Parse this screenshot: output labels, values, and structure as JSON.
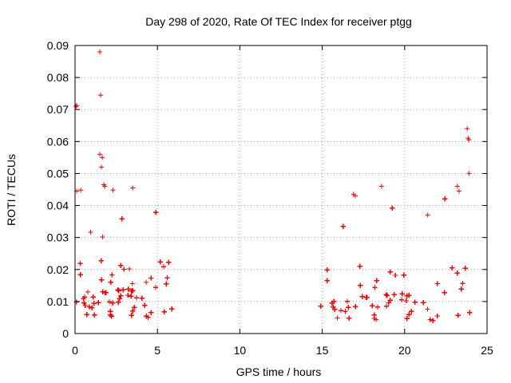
{
  "chart_data": {
    "type": "scatter",
    "title": "Day 298 of 2020, Rate Of TEC Index for receiver ptgg",
    "xlabel": "GPS time / hours",
    "ylabel": "ROTI / TECUs",
    "xlim": [
      0,
      25
    ],
    "ylim": [
      0,
      0.09
    ],
    "x_ticks": [
      "0",
      "5",
      "10",
      "15",
      "20",
      "25"
    ],
    "y_ticks": [
      "0",
      "0.01",
      "0.02",
      "0.03",
      "0.04",
      "0.05",
      "0.06",
      "0.07",
      "0.08",
      "0.09"
    ],
    "grid": true,
    "marker": "+",
    "series_color": "#ff0000",
    "point_clusters": [
      {
        "x_range": [
          0.0,
          5.9
        ],
        "y_typical": [
          0.005,
          0.022
        ],
        "y_max": 0.04
      },
      {
        "x_range": [
          14.8,
          24.0
        ],
        "y_typical": [
          0.004,
          0.02
        ],
        "y_max": 0.045
      }
    ],
    "outliers": [
      {
        "x": 0.05,
        "y": 0.071
      },
      {
        "x": 0.1,
        "y": 0.0712
      },
      {
        "x": 1.5,
        "y": 0.088
      },
      {
        "x": 1.55,
        "y": 0.0745
      },
      {
        "x": 1.5,
        "y": 0.056
      },
      {
        "x": 1.65,
        "y": 0.055
      },
      {
        "x": 1.6,
        "y": 0.052
      },
      {
        "x": 1.8,
        "y": 0.046
      },
      {
        "x": 1.75,
        "y": 0.0465
      },
      {
        "x": 0.1,
        "y": 0.0445
      },
      {
        "x": 0.35,
        "y": 0.0448
      },
      {
        "x": 3.5,
        "y": 0.0455
      },
      {
        "x": 2.3,
        "y": 0.0448
      },
      {
        "x": 16.9,
        "y": 0.0435
      },
      {
        "x": 17.0,
        "y": 0.043
      },
      {
        "x": 18.6,
        "y": 0.046
      },
      {
        "x": 21.4,
        "y": 0.037
      },
      {
        "x": 23.8,
        "y": 0.064
      },
      {
        "x": 23.85,
        "y": 0.061
      },
      {
        "x": 23.9,
        "y": 0.0605
      },
      {
        "x": 23.9,
        "y": 0.05
      },
      {
        "x": 23.2,
        "y": 0.046
      },
      {
        "x": 23.3,
        "y": 0.0445
      }
    ]
  }
}
